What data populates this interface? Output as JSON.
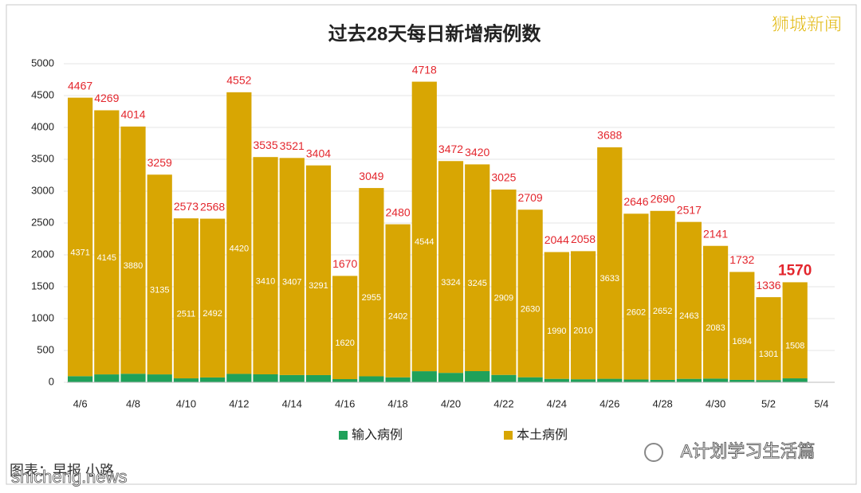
{
  "chart_data": {
    "type": "stacked-bar",
    "title": "过去28天每日新增病例数",
    "categories": [
      "4/6",
      null,
      "4/8",
      null,
      "4/10",
      null,
      "4/12",
      null,
      "4/14",
      null,
      "4/16",
      null,
      "4/18",
      null,
      "4/20",
      null,
      "4/22",
      null,
      "4/24",
      null,
      "4/26",
      null,
      "4/28",
      null,
      "4/30",
      null,
      "5/2",
      null,
      "5/4"
    ],
    "series": [
      {
        "name": "输入病例",
        "color": "#1fa15a",
        "values": [
          96,
          124,
          134,
          124,
          62,
          76,
          132,
          125,
          114,
          113,
          50,
          94,
          78,
          174,
          148,
          175,
          116,
          79,
          54,
          48,
          55,
          44,
          38,
          54,
          58,
          38,
          35,
          62,
          null
        ]
      },
      {
        "name": "本土病例",
        "color": "#d8a603",
        "values": [
          4371,
          4145,
          3880,
          3135,
          2511,
          2492,
          4420,
          3410,
          3407,
          3291,
          1620,
          2955,
          2402,
          4544,
          3324,
          3245,
          2909,
          2630,
          1990,
          2010,
          3633,
          2602,
          2652,
          2463,
          2083,
          1694,
          1301,
          1508,
          null
        ]
      }
    ],
    "totals": [
      4467,
      4269,
      4014,
      3259,
      2573,
      2568,
      4552,
      3535,
      3521,
      3404,
      1670,
      3049,
      2480,
      4718,
      3472,
      3420,
      3025,
      2709,
      2044,
      2058,
      3688,
      2646,
      2690,
      2517,
      2141,
      1732,
      1336,
      1570,
      null
    ],
    "total_color": "#e3262d",
    "ylim": [
      0,
      5000
    ],
    "yticks": [
      0,
      500,
      1000,
      1500,
      2000,
      2500,
      3000,
      3500,
      4000,
      4500,
      5000
    ],
    "grid": true,
    "legend": "bottom",
    "watermark_top": "狮城新闻",
    "account": "A计划学习生活篇",
    "source": "图表：早报 小路",
    "site": "shicheng.news"
  }
}
